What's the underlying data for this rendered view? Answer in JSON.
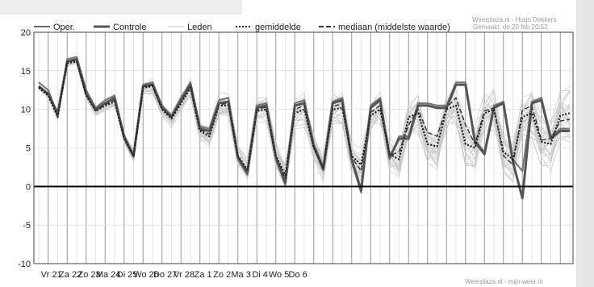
{
  "chart_data": {
    "type": "line",
    "title": "",
    "xlabel": "",
    "ylabel": "",
    "ylim": [
      -10,
      20
    ],
    "yticks": [
      -10,
      -5,
      0,
      5,
      10,
      15,
      20
    ],
    "grid": true,
    "legend_position": "top",
    "categories": [
      "Vr 21",
      "Za 22",
      "Zo 23",
      "Ma 24",
      "Di 25",
      "Wo 26",
      "Do 27",
      "Vr 28",
      "Za 1",
      "Zo 2",
      "Ma 3",
      "Di 4",
      "Wo 5",
      "Do 6"
    ],
    "x": [
      0,
      0.5,
      1,
      1.5,
      2,
      2.5,
      3,
      3.5,
      4,
      4.5,
      5,
      5.5,
      6,
      6.5,
      7,
      7.5,
      8,
      8.5,
      9,
      9.5,
      10,
      10.5,
      11,
      11.5,
      12,
      12.5,
      13,
      13.5,
      14,
      14.5,
      15,
      15.5,
      16,
      16.5,
      17,
      17.5,
      18,
      18.5,
      19,
      19.5,
      20,
      20.5,
      21,
      21.5,
      22,
      22.5,
      23,
      23.5,
      24,
      24.5,
      25,
      25.5,
      26,
      26.5,
      27,
      27.5,
      28
    ],
    "legend": [
      {
        "label": "Oper.",
        "color": "#6a6a6a",
        "style": "solid"
      },
      {
        "label": "Controle",
        "color": "#555555",
        "style": "thick"
      },
      {
        "label": "Leden",
        "color": "#c4c4c4",
        "style": "thin"
      },
      {
        "label": "gemiddelde",
        "color": "#111111",
        "style": "dotted"
      },
      {
        "label": "mediaan (middelste waarde)",
        "color": "#333333",
        "style": "dashed"
      }
    ],
    "series": [
      {
        "name": "Oper.",
        "values": [
          13.5,
          12.5,
          9.2,
          16.5,
          16.8,
          12.5,
          10.2,
          11.2,
          11.8,
          6.2,
          3.8,
          13.2,
          13.5,
          10.5,
          9.2,
          11.5,
          13.5,
          7.8,
          7.5,
          11.2,
          11.5,
          3.5,
          1.5,
          10.5,
          10.8,
          3.5,
          0.2,
          10.8,
          11.2,
          5.5,
          2.5,
          11.0,
          11.5,
          3.2,
          -0.8,
          10.5,
          11.5,
          3.5,
          6.5,
          6.5,
          10.8,
          10.8,
          10.5,
          10.5,
          13.5,
          13.5,
          6.0,
          4.5,
          10.5,
          11.0,
          3.5,
          2.0,
          11.0,
          11.5,
          6.5,
          7.5,
          7.5
        ]
      },
      {
        "name": "Controle",
        "values": [
          13.0,
          12.0,
          9.5,
          16.2,
          16.5,
          12.0,
          10.0,
          10.8,
          11.5,
          6.5,
          4.0,
          13.0,
          13.2,
          10.2,
          9.0,
          11.2,
          13.2,
          7.5,
          7.2,
          10.8,
          11.0,
          3.8,
          1.8,
          10.2,
          10.5,
          3.8,
          0.5,
          10.5,
          10.8,
          5.2,
          2.2,
          10.8,
          11.2,
          3.5,
          -0.5,
          10.2,
          11.2,
          3.8,
          6.2,
          6.2,
          10.5,
          10.5,
          10.2,
          10.2,
          13.2,
          13.2,
          5.8,
          4.2,
          10.2,
          10.8,
          3.2,
          -1.5,
          10.8,
          11.2,
          6.2,
          7.2,
          7.2
        ]
      },
      {
        "name": "gemiddelde",
        "values": [
          12.8,
          11.8,
          9.0,
          16.0,
          16.2,
          11.8,
          9.8,
          10.5,
          11.0,
          6.2,
          4.0,
          12.8,
          13.0,
          10.0,
          8.8,
          10.8,
          12.8,
          7.2,
          6.5,
          10.5,
          10.5,
          4.0,
          2.2,
          9.8,
          10.0,
          4.0,
          1.5,
          9.5,
          10.0,
          5.0,
          2.5,
          10.0,
          10.2,
          4.0,
          2.8,
          9.2,
          10.0,
          4.2,
          3.5,
          9.0,
          9.5,
          5.5,
          5.2,
          10.0,
          10.5,
          5.5,
          5.0,
          9.5,
          10.0,
          4.5,
          3.5,
          9.0,
          9.5,
          5.8,
          5.5,
          9.2,
          9.5
        ]
      },
      {
        "name": "mediaan (middelste waarde)",
        "values": [
          13.0,
          12.0,
          9.2,
          16.2,
          16.5,
          12.0,
          9.8,
          10.6,
          11.2,
          6.3,
          4.0,
          13.0,
          13.2,
          10.1,
          9.0,
          11.0,
          13.0,
          7.4,
          6.8,
          10.6,
          10.8,
          3.9,
          2.0,
          10.0,
          10.3,
          3.9,
          1.0,
          10.0,
          10.5,
          5.1,
          2.4,
          10.4,
          10.7,
          3.8,
          2.0,
          9.6,
          10.5,
          4.0,
          4.5,
          8.0,
          10.0,
          7.0,
          6.5,
          10.2,
          11.5,
          8.0,
          5.5,
          9.8,
          10.2,
          4.0,
          2.8,
          9.9,
          10.5,
          6.0,
          6.2,
          8.5,
          8.7
        ]
      }
    ],
    "members_note": "",
    "axis_line_at_zero": true
  },
  "header": {
    "credit_top_1": "Weerplaza.nl - Hugo Dekkers",
    "credit_top_2": "Gemaakt: do 20 feb 20:52",
    "credit_bottom": "Weerplaza.nl - mijn-weer.nl"
  },
  "colors": {
    "frame": "#444444",
    "gridline": "#d6d6d6",
    "daydivider": "#9a9a9a",
    "member": "#c8c8c8",
    "zero_line": "#000000"
  }
}
